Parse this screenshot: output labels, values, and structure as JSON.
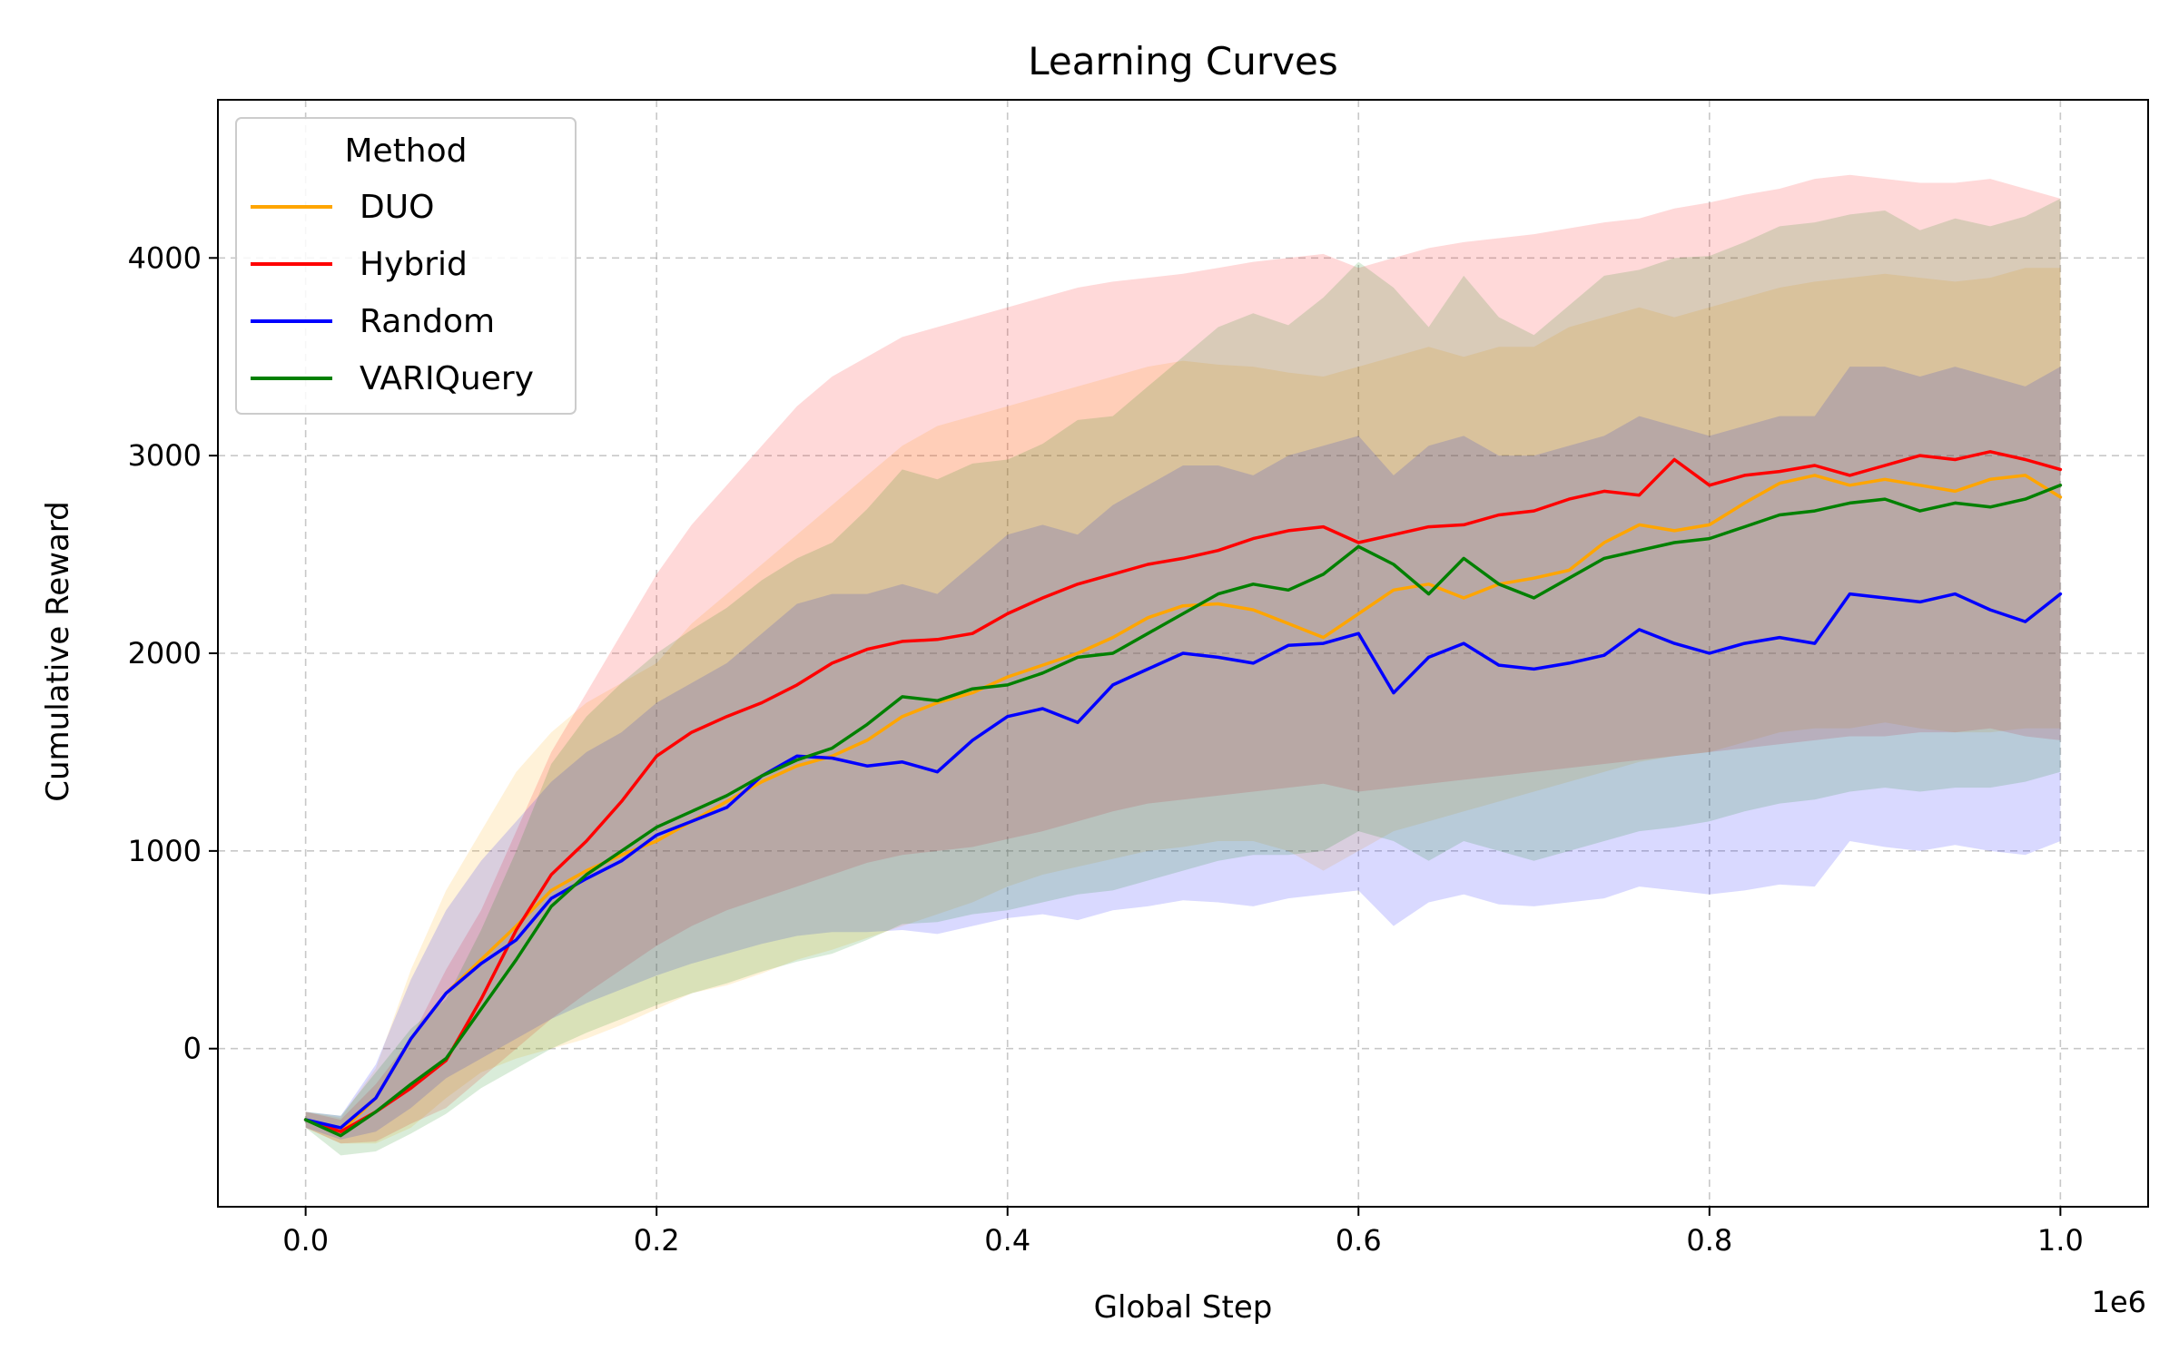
{
  "chart_data": {
    "type": "line",
    "title": "Learning Curves",
    "xlabel": "Global Step",
    "ylabel": "Cumulative Reward",
    "x_offset_label": "1e6",
    "xlim": [
      -0.05,
      1.05
    ],
    "ylim": [
      -800,
      4800
    ],
    "xticks": [
      0.0,
      0.2,
      0.4,
      0.6,
      0.8,
      1.0
    ],
    "xtick_labels": [
      "0.0",
      "0.2",
      "0.4",
      "0.6",
      "0.8",
      "1.0"
    ],
    "yticks": [
      0,
      1000,
      2000,
      3000,
      4000
    ],
    "ytick_labels": [
      "0",
      "1000",
      "2000",
      "3000",
      "4000"
    ],
    "grid": true,
    "legend": {
      "title": "Method",
      "placement": "top-left"
    },
    "x": [
      0.0,
      0.02,
      0.04,
      0.06,
      0.08,
      0.1,
      0.12,
      0.14,
      0.16,
      0.18,
      0.2,
      0.22,
      0.24,
      0.26,
      0.28,
      0.3,
      0.32,
      0.34,
      0.36,
      0.38,
      0.4,
      0.42,
      0.44,
      0.46,
      0.48,
      0.5,
      0.52,
      0.54,
      0.56,
      0.58,
      0.6,
      0.62,
      0.64,
      0.66,
      0.68,
      0.7,
      0.72,
      0.74,
      0.76,
      0.78,
      0.8,
      0.82,
      0.84,
      0.86,
      0.88,
      0.9,
      0.92,
      0.94,
      0.96,
      0.98,
      1.0
    ],
    "series": [
      {
        "name": "DUO",
        "color": "#ffa500",
        "values": [
          -360,
          -420,
          -250,
          50,
          280,
          450,
          620,
          800,
          900,
          980,
          1050,
          1150,
          1250,
          1350,
          1430,
          1480,
          1560,
          1680,
          1750,
          1800,
          1880,
          1940,
          2000,
          2080,
          2180,
          2240,
          2250,
          2220,
          2150,
          2080,
          2200,
          2320,
          2350,
          2280,
          2350,
          2380,
          2420,
          2560,
          2650,
          2620,
          2650,
          2760,
          2860,
          2900,
          2850,
          2880,
          2850,
          2820,
          2880,
          2900,
          2790
        ],
        "lower": [
          -400,
          -480,
          -480,
          -400,
          -250,
          -120,
          -50,
          0,
          50,
          120,
          200,
          280,
          320,
          380,
          450,
          500,
          560,
          620,
          680,
          740,
          820,
          880,
          920,
          960,
          1000,
          1020,
          1050,
          1050,
          1000,
          900,
          1000,
          1100,
          1150,
          1200,
          1250,
          1300,
          1350,
          1400,
          1450,
          1480,
          1500,
          1550,
          1600,
          1620,
          1620,
          1650,
          1620,
          1600,
          1600,
          1620,
          1620
        ],
        "upper": [
          -320,
          -350,
          -100,
          400,
          800,
          1100,
          1400,
          1600,
          1750,
          1850,
          1950,
          2150,
          2300,
          2450,
          2600,
          2750,
          2900,
          3050,
          3150,
          3200,
          3250,
          3300,
          3350,
          3400,
          3450,
          3480,
          3460,
          3450,
          3420,
          3400,
          3450,
          3500,
          3550,
          3500,
          3550,
          3550,
          3650,
          3700,
          3750,
          3700,
          3750,
          3800,
          3850,
          3880,
          3900,
          3920,
          3900,
          3880,
          3900,
          3950,
          3950
        ]
      },
      {
        "name": "Hybrid",
        "color": "#ff0000",
        "values": [
          -360,
          -420,
          -320,
          -200,
          -60,
          250,
          600,
          880,
          1050,
          1250,
          1480,
          1600,
          1680,
          1750,
          1840,
          1950,
          2020,
          2060,
          2070,
          2100,
          2200,
          2280,
          2350,
          2400,
          2450,
          2480,
          2520,
          2580,
          2620,
          2640,
          2560,
          2600,
          2640,
          2650,
          2700,
          2720,
          2780,
          2820,
          2800,
          2980,
          2850,
          2900,
          2920,
          2950,
          2900,
          2950,
          3000,
          2980,
          3020,
          2980,
          2930
        ],
        "lower": [
          -400,
          -480,
          -470,
          -380,
          -300,
          -150,
          0,
          150,
          280,
          400,
          520,
          620,
          700,
          760,
          820,
          880,
          940,
          980,
          1000,
          1020,
          1060,
          1100,
          1150,
          1200,
          1240,
          1260,
          1280,
          1300,
          1320,
          1340,
          1300,
          1320,
          1340,
          1360,
          1380,
          1400,
          1420,
          1440,
          1460,
          1480,
          1500,
          1520,
          1540,
          1560,
          1580,
          1580,
          1600,
          1600,
          1620,
          1580,
          1560
        ],
        "upper": [
          -320,
          -360,
          -180,
          50,
          400,
          700,
          1100,
          1500,
          1800,
          2100,
          2400,
          2650,
          2850,
          3050,
          3250,
          3400,
          3500,
          3600,
          3650,
          3700,
          3750,
          3800,
          3850,
          3880,
          3900,
          3920,
          3950,
          3980,
          4000,
          4020,
          3950,
          4000,
          4050,
          4080,
          4100,
          4120,
          4150,
          4180,
          4200,
          4250,
          4280,
          4320,
          4350,
          4400,
          4420,
          4400,
          4380,
          4380,
          4400,
          4350,
          4300
        ]
      },
      {
        "name": "Random",
        "color": "#0000ff",
        "values": [
          -360,
          -400,
          -250,
          50,
          280,
          430,
          550,
          760,
          860,
          950,
          1080,
          1150,
          1220,
          1380,
          1480,
          1470,
          1430,
          1450,
          1400,
          1560,
          1680,
          1720,
          1650,
          1840,
          1920,
          2000,
          1980,
          1950,
          2040,
          2050,
          2100,
          1800,
          1980,
          2050,
          1940,
          1920,
          1950,
          1990,
          2120,
          2050,
          2000,
          2050,
          2080,
          2050,
          2300,
          2280,
          2260,
          2300,
          2220,
          2160,
          2300
        ],
        "lower": [
          -400,
          -460,
          -420,
          -300,
          -150,
          -50,
          50,
          150,
          230,
          300,
          370,
          430,
          480,
          530,
          570,
          590,
          590,
          600,
          580,
          620,
          660,
          680,
          650,
          700,
          720,
          750,
          740,
          720,
          760,
          780,
          800,
          620,
          740,
          780,
          730,
          720,
          740,
          760,
          820,
          800,
          780,
          800,
          830,
          820,
          1050,
          1020,
          1000,
          1030,
          1000,
          980,
          1050
        ],
        "upper": [
          -320,
          -340,
          -80,
          350,
          700,
          950,
          1150,
          1350,
          1500,
          1600,
          1750,
          1850,
          1950,
          2100,
          2250,
          2300,
          2300,
          2350,
          2300,
          2450,
          2600,
          2650,
          2600,
          2750,
          2850,
          2950,
          2950,
          2900,
          3000,
          3050,
          3100,
          2900,
          3050,
          3100,
          3000,
          3000,
          3050,
          3100,
          3200,
          3150,
          3100,
          3150,
          3200,
          3200,
          3450,
          3450,
          3400,
          3450,
          3400,
          3350,
          3450
        ]
      },
      {
        "name": "VARIQuery",
        "color": "#008000",
        "values": [
          -360,
          -440,
          -320,
          -180,
          -50,
          200,
          450,
          720,
          880,
          1000,
          1120,
          1200,
          1280,
          1380,
          1460,
          1520,
          1640,
          1780,
          1760,
          1820,
          1840,
          1900,
          1980,
          2000,
          2100,
          2200,
          2300,
          2350,
          2320,
          2400,
          2540,
          2450,
          2300,
          2480,
          2350,
          2280,
          2380,
          2480,
          2520,
          2560,
          2580,
          2640,
          2700,
          2720,
          2760,
          2780,
          2720,
          2760,
          2740,
          2780,
          2850
        ],
        "lower": [
          -400,
          -540,
          -520,
          -430,
          -330,
          -200,
          -100,
          0,
          80,
          150,
          220,
          280,
          330,
          390,
          440,
          480,
          550,
          630,
          640,
          680,
          700,
          740,
          780,
          800,
          850,
          900,
          950,
          980,
          980,
          1000,
          1100,
          1050,
          950,
          1050,
          1000,
          950,
          1000,
          1050,
          1100,
          1120,
          1150,
          1200,
          1240,
          1260,
          1300,
          1320,
          1300,
          1320,
          1320,
          1350,
          1400
        ],
        "upper": [
          -320,
          -340,
          -120,
          100,
          250,
          600,
          1000,
          1440,
          1680,
          1850,
          2000,
          2120,
          2230,
          2370,
          2480,
          2560,
          2730,
          2930,
          2880,
          2960,
          2980,
          3060,
          3180,
          3200,
          3350,
          3500,
          3650,
          3720,
          3660,
          3800,
          3980,
          3850,
          3650,
          3910,
          3700,
          3610,
          3760,
          3910,
          3940,
          4000,
          4010,
          4080,
          4160,
          4180,
          4220,
          4240,
          4140,
          4200,
          4160,
          4210,
          4300
        ]
      }
    ]
  }
}
